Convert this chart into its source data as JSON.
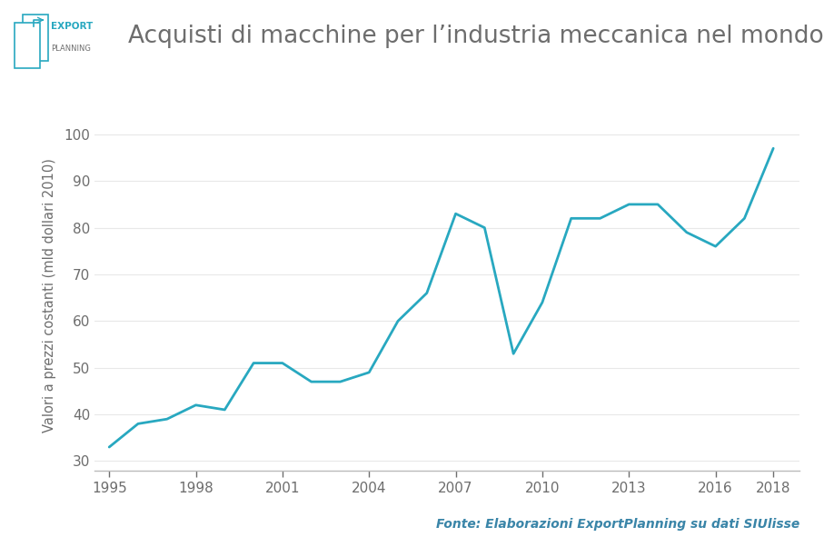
{
  "title": "Acquisti di macchine per l’industria meccanica nel mondo",
  "ylabel": "Valori a prezzi costanti (mld dollari 2010)",
  "footnote": "Fonte: Elaborazioni ExportPlanning su dati SIUlisse",
  "line_color": "#28a8c0",
  "background_color": "#ffffff",
  "years": [
    1995,
    1996,
    1997,
    1998,
    1999,
    2000,
    2001,
    2002,
    2003,
    2004,
    2005,
    2006,
    2007,
    2008,
    2009,
    2010,
    2011,
    2012,
    2013,
    2014,
    2015,
    2016,
    2017,
    2018
  ],
  "values": [
    33,
    38,
    39,
    42,
    41,
    51,
    51,
    47,
    47,
    49,
    60,
    66,
    83,
    80,
    53,
    64,
    82,
    82,
    85,
    85,
    79,
    76,
    82,
    97
  ],
  "ylim": [
    28,
    103
  ],
  "yticks": [
    30,
    40,
    50,
    60,
    70,
    80,
    90,
    100
  ],
  "xticks": [
    1995,
    1998,
    2001,
    2004,
    2007,
    2010,
    2013,
    2016,
    2018
  ],
  "line_width": 2.0,
  "title_color": "#6d6d6d",
  "title_fontsize": 19,
  "tick_color": "#6d6d6d",
  "tick_fontsize": 11,
  "axis_color": "#bbbbbb",
  "grid_color": "#e8e8e8",
  "footnote_color": "#3a85a8",
  "footnote_fontsize": 10
}
